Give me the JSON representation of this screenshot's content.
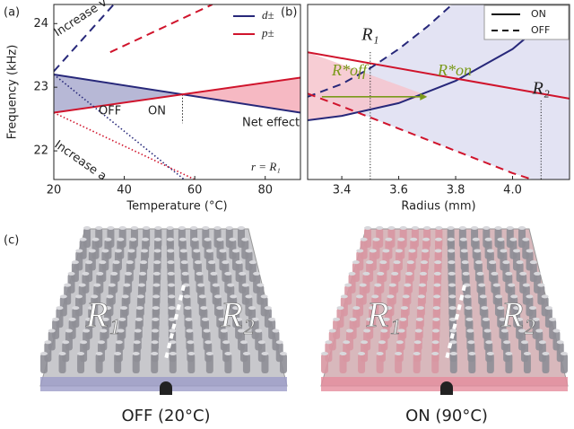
{
  "panel_labels": [
    "(a)",
    "(b)",
    "(c)"
  ],
  "chart_data": [
    {
      "type": "line",
      "ylabel": "Frequency (kHz)",
      "xlabel": "Temperature (°C)",
      "xlim": [
        20,
        90
      ],
      "ylim": [
        21.55,
        24.3
      ],
      "xticks": [
        20,
        40,
        60,
        80
      ],
      "yticks": [
        22,
        23,
        24
      ],
      "legend": "upper right",
      "series": [
        {
          "name": "d±",
          "color": "#27287a",
          "style": "solid",
          "x": [
            20,
            90
          ],
          "values": [
            23.2,
            22.6
          ]
        },
        {
          "name": "p±",
          "color": "#d0142c",
          "style": "solid",
          "x": [
            20,
            90
          ],
          "values": [
            22.6,
            23.15
          ]
        },
        {
          "color": "#27287a",
          "style": "dashed",
          "x": [
            20,
            37
          ],
          "values": [
            23.25,
            24.3
          ]
        },
        {
          "color": "#d0142c",
          "style": "dashed",
          "x": [
            36,
            65
          ],
          "values": [
            23.55,
            24.3
          ]
        },
        {
          "color": "#27287a",
          "style": "dotted",
          "x": [
            20,
            57
          ],
          "values": [
            23.2,
            21.55
          ]
        },
        {
          "color": "#d0142c",
          "style": "dotted",
          "x": [
            20,
            60
          ],
          "values": [
            22.6,
            21.55
          ]
        }
      ],
      "annotations": [
        "Increase v",
        "Increase a",
        "OFF",
        "ON",
        "Net effect",
        "r = R₁"
      ]
    },
    {
      "type": "line",
      "xlabel": "Radius (mm)",
      "xlim": [
        3.28,
        4.2
      ],
      "ylim": [
        21.55,
        24.3
      ],
      "xticks": [
        3.4,
        3.6,
        3.8,
        {
          "value": 4,
          "label": "4.0"
        }
      ],
      "legend": "upper right",
      "legend_entries": [
        {
          "label": "ON",
          "style": "solid"
        },
        {
          "label": "OFF",
          "style": "dashed"
        }
      ],
      "series": [
        {
          "color": "#27287a",
          "style": "solid",
          "x": [
            3.28,
            3.4,
            3.6,
            3.8,
            4.0,
            4.2
          ],
          "values": [
            22.48,
            22.55,
            22.75,
            23.1,
            23.6,
            24.35
          ]
        },
        {
          "color": "#d0142c",
          "style": "solid",
          "x": [
            3.28,
            4.2
          ],
          "values": [
            23.55,
            22.82
          ]
        },
        {
          "color": "#27287a",
          "style": "dashed",
          "x": [
            3.28,
            3.4,
            3.5,
            3.6,
            3.7,
            3.8
          ],
          "values": [
            22.85,
            23.05,
            23.3,
            23.6,
            23.95,
            24.35
          ]
        },
        {
          "color": "#d0142c",
          "style": "dashed",
          "x": [
            3.28,
            3.4,
            3.6,
            3.8,
            4.0,
            4.07
          ],
          "values": [
            22.9,
            22.7,
            22.35,
            22.0,
            21.65,
            21.55
          ]
        }
      ],
      "markers": [
        {
          "label": "R₁",
          "x": 3.5
        },
        {
          "label": "R₂",
          "x": 4.1
        }
      ],
      "arrow": {
        "from": 3.33,
        "to": 3.7,
        "y": 22.85,
        "color": "#7a9a1a",
        "labels": [
          "R*off",
          "R*on"
        ]
      }
    }
  ],
  "images": [
    {
      "caption": "OFF (20°C)",
      "regions": [
        "R₁",
        "R₂"
      ]
    },
    {
      "caption": "ON (90°C)",
      "regions": [
        "R₁",
        "R₂"
      ]
    }
  ]
}
